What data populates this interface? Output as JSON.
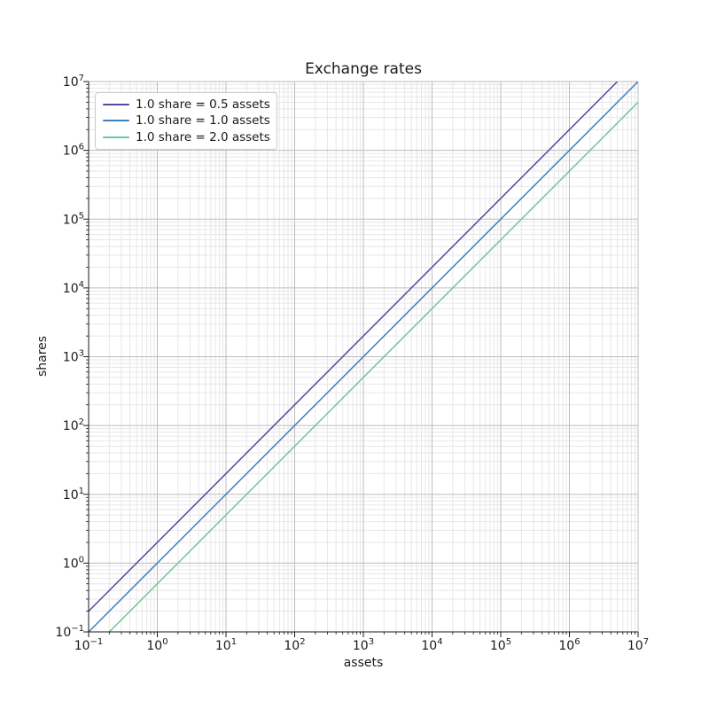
{
  "figure": {
    "background": "#ffffff",
    "text_color": "#1a1a1a",
    "spine_color": "#1a1a1a"
  },
  "chart_data": {
    "type": "line",
    "title": "Exchange rates",
    "xlabel": "assets",
    "ylabel": "shares",
    "xscale": "log",
    "yscale": "log",
    "xlim": [
      0.1,
      10000000
    ],
    "ylim": [
      0.1,
      10000000
    ],
    "tick_label_base": "10",
    "xtick_exponents": [
      -1,
      0,
      1,
      2,
      3,
      4,
      5,
      6,
      7
    ],
    "ytick_exponents": [
      -1,
      0,
      1,
      2,
      3,
      4,
      5,
      6,
      7
    ],
    "grid": {
      "major": true,
      "minor": true,
      "major_color": "#bdbdbd",
      "minor_color": "#e7e7e7"
    },
    "legend": {
      "position": "upper left",
      "border_color": "#cccccc",
      "background": "#ffffff"
    },
    "series": [
      {
        "name": "1.0 share = 0.5 assets",
        "color": "#4d4ba1",
        "shares_per_asset": 2.0,
        "points": [
          [
            0.1,
            0.2
          ],
          [
            1,
            2
          ],
          [
            10,
            20
          ],
          [
            100,
            200
          ],
          [
            1000,
            2000
          ],
          [
            10000,
            20000
          ],
          [
            100000,
            200000
          ],
          [
            1000000,
            2000000
          ],
          [
            5000000,
            10000000
          ]
        ]
      },
      {
        "name": "1.0 share = 1.0 assets",
        "color": "#3e7ec2",
        "shares_per_asset": 1.0,
        "points": [
          [
            0.1,
            0.1
          ],
          [
            1,
            1
          ],
          [
            10,
            10
          ],
          [
            100,
            100
          ],
          [
            1000,
            1000
          ],
          [
            10000,
            10000
          ],
          [
            100000,
            100000
          ],
          [
            1000000,
            1000000
          ],
          [
            10000000,
            10000000
          ]
        ]
      },
      {
        "name": "1.0 share = 2.0 assets",
        "color": "#68c9a2",
        "shares_per_asset": 0.5,
        "points": [
          [
            0.2,
            0.1
          ],
          [
            1,
            0.5
          ],
          [
            10,
            5
          ],
          [
            100,
            50
          ],
          [
            1000,
            500
          ],
          [
            10000,
            5000
          ],
          [
            100000,
            50000
          ],
          [
            1000000,
            500000
          ],
          [
            10000000,
            5000000
          ]
        ]
      }
    ]
  }
}
